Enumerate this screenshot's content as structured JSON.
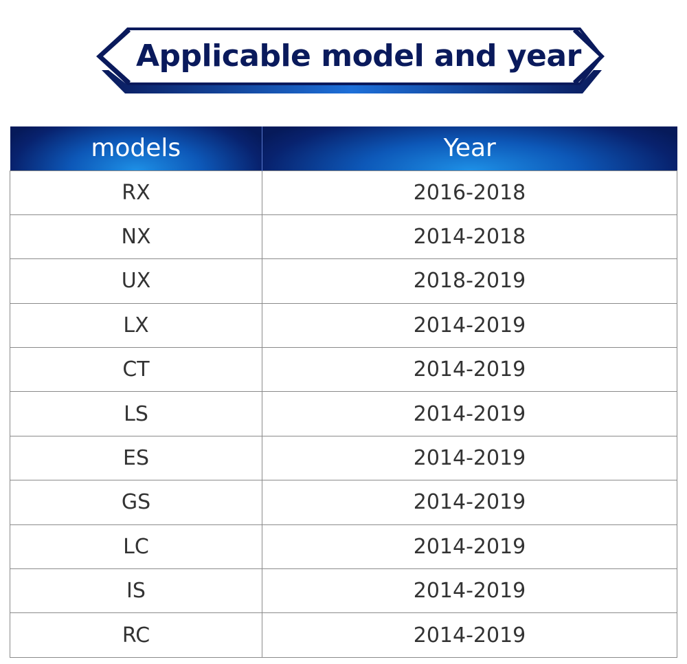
{
  "banner": {
    "title": "Applicable model and year"
  },
  "table": {
    "headers": [
      "models",
      "Year"
    ],
    "rows": [
      {
        "model": "RX",
        "year": "2016-2018"
      },
      {
        "model": "NX",
        "year": "2014-2018"
      },
      {
        "model": "UX",
        "year": "2018-2019"
      },
      {
        "model": "LX",
        "year": "2014-2019"
      },
      {
        "model": "CT",
        "year": "2014-2019"
      },
      {
        "model": "LS",
        "year": "2014-2019"
      },
      {
        "model": "ES",
        "year": "2014-2019"
      },
      {
        "model": "GS",
        "year": "2014-2019"
      },
      {
        "model": "LC",
        "year": "2014-2019"
      },
      {
        "model": "IS",
        "year": "2014-2019"
      },
      {
        "model": "RC",
        "year": "2014-2019"
      }
    ]
  },
  "colors": {
    "title_text": "#0a1a5c",
    "header_dark": "#08226e",
    "header_bright": "#1e90e6",
    "cell_text": "#333333",
    "grid": "#8a8a8a"
  }
}
